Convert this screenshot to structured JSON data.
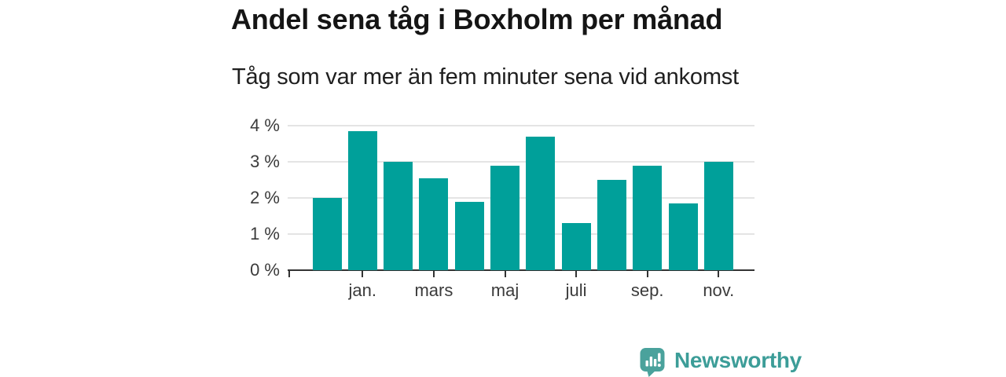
{
  "chart": {
    "title": "Andel sena tåg i Boxholm per månad",
    "subtitle": "Tåg som var mer än fem minuter sena vid ankomst"
  },
  "chart_data": {
    "type": "bar",
    "title": "Andel sena tåg i Boxholm per månad",
    "subtitle": "Tåg som var mer än fem minuter sena vid ankomst",
    "unit": "%",
    "ylim": [
      0,
      4
    ],
    "grid": true,
    "legend": "none",
    "y_ticks": [
      {
        "value": 4,
        "label": "4 %"
      },
      {
        "value": 3,
        "label": "3 %"
      },
      {
        "value": 2,
        "label": "2 %"
      },
      {
        "value": 1,
        "label": "1 %"
      },
      {
        "value": 0,
        "label": "0 %"
      }
    ],
    "values": [
      2.0,
      3.85,
      3.0,
      2.55,
      1.9,
      2.9,
      3.7,
      1.3,
      2.5,
      2.9,
      1.85,
      3.0
    ],
    "x_tick_labels": [
      "jan.",
      "mars",
      "maj",
      "juli",
      "sep.",
      "nov."
    ],
    "x_tick_bar_indices": [
      1,
      3,
      5,
      7,
      9,
      11
    ],
    "bar_color": "#00a09a",
    "gridline_color": "#e4e4e4",
    "axis_color": "#333333"
  },
  "branding": {
    "logo_text": "Newsworthy",
    "logo_text_color": "#3c9d98",
    "logo_icon_color": "#4aa29c"
  }
}
